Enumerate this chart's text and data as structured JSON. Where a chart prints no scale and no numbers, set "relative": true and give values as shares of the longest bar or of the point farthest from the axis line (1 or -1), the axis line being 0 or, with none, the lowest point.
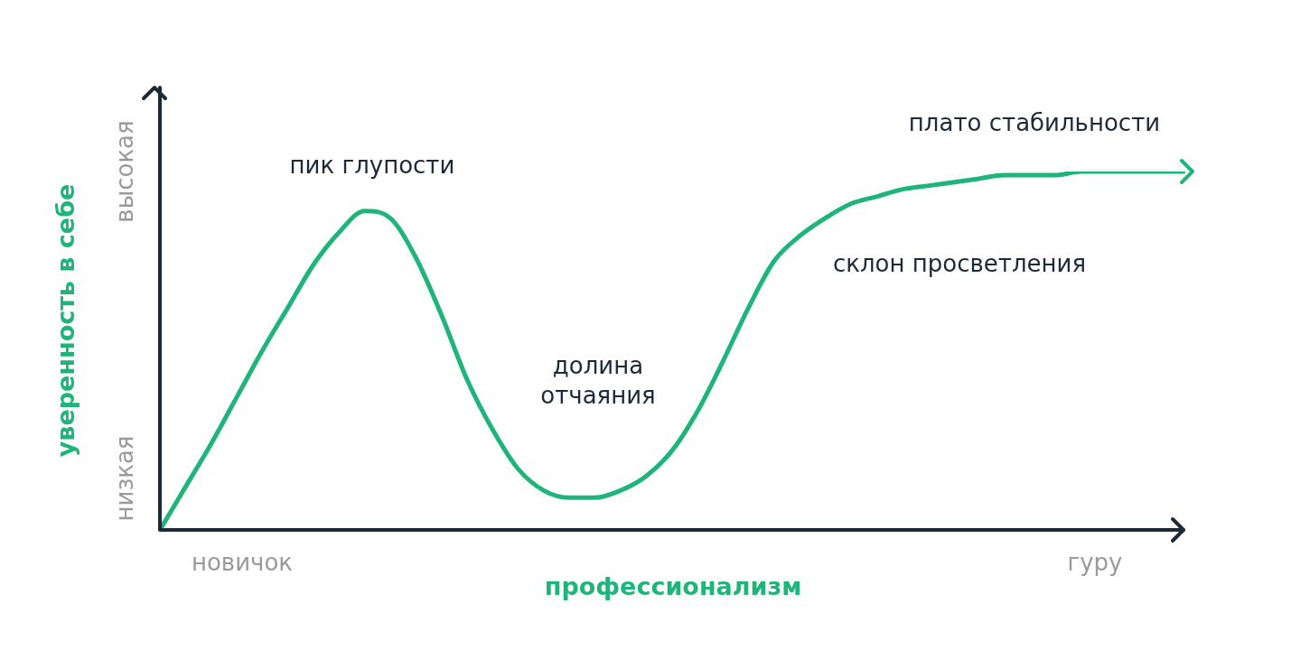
{
  "chart_data": {
    "type": "line",
    "relative": true,
    "xlabel": "профессионализм",
    "ylabel": "уверенность в себе",
    "categories": [
      null,
      null,
      null,
      null,
      null,
      null,
      null,
      null,
      null,
      null,
      null,
      null,
      null,
      null,
      null,
      null,
      null,
      null,
      null,
      null,
      null,
      null,
      null,
      null,
      null,
      null,
      null,
      null,
      null,
      null,
      null,
      null,
      null,
      null,
      null,
      null,
      null,
      null,
      null,
      null,
      null
    ],
    "series": [
      {
        "color": "#1fb57a",
        "values": [
          0,
          0.12,
          0.24,
          0.37,
          0.5,
          0.62,
          0.74,
          0.83,
          0.89,
          0.87,
          0.76,
          0.6,
          0.42,
          0.28,
          0.17,
          0.11,
          0.09,
          0.09,
          0.11,
          0.15,
          0.22,
          0.33,
          0.47,
          0.62,
          0.75,
          0.82,
          0.87,
          0.91,
          0.93,
          0.95,
          0.96,
          0.97,
          0.98,
          0.99,
          0.99,
          0.99,
          1,
          1,
          1,
          1,
          1
        ]
      }
    ],
    "annotations": [
      "новичок",
      "гуру",
      "низкая",
      "высокая",
      "пик глупости",
      "долина\nотчаяния",
      "склон просветления",
      "плато стабильности"
    ],
    "legend": false,
    "marker": "none",
    "line_style": "solid"
  }
}
